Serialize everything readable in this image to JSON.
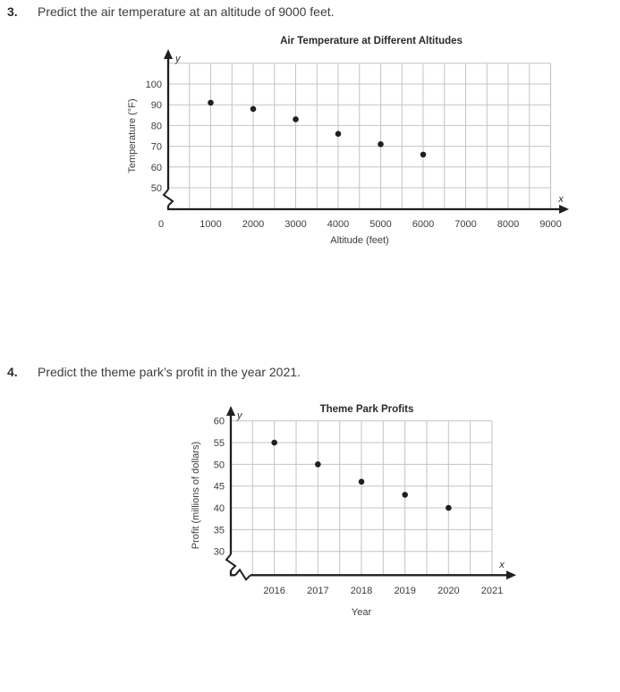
{
  "page": {
    "background": "#ffffff",
    "text_color": "#3d3d3d",
    "axis_color": "#231f20",
    "grid_color": "#c1c4c7"
  },
  "questions": [
    {
      "number": "3.",
      "text": "Predict the air temperature at an altitude of 9000 feet."
    },
    {
      "number": "4.",
      "text": "Predict the theme park’s profit in the year 2021."
    }
  ],
  "chart_data": [
    {
      "type": "scatter",
      "title": "Air Temperature at Different Altitudes",
      "xlabel": "Altitude (feet)",
      "ylabel": "Temperature (°F)",
      "x_axis_letter": "x",
      "y_axis_letter": "y",
      "x": [
        1000,
        2000,
        3000,
        4000,
        5000,
        6000
      ],
      "y": [
        91,
        88,
        83,
        76,
        71,
        66
      ],
      "x_ticks": [
        0,
        1000,
        2000,
        3000,
        4000,
        5000,
        6000,
        7000,
        8000,
        9000
      ],
      "y_ticks": [
        50,
        60,
        70,
        80,
        90,
        100
      ],
      "xlim": [
        0,
        9000
      ],
      "ylim_shown": [
        50,
        110
      ],
      "grid": "on",
      "axis_break": "y-axis between 0 and 50",
      "point_color": "#231f20",
      "grid_color": "#c1c4c7"
    },
    {
      "type": "scatter",
      "title": "Theme Park Profits",
      "xlabel": "Year",
      "ylabel": "Profit (millions of dollars)",
      "x_axis_letter": "x",
      "y_axis_letter": "y",
      "x": [
        2016,
        2017,
        2018,
        2019,
        2020
      ],
      "y": [
        55,
        50,
        46,
        43,
        40
      ],
      "x_ticks": [
        2016,
        2017,
        2018,
        2019,
        2020,
        2021
      ],
      "y_ticks": [
        30,
        35,
        40,
        45,
        50,
        55,
        60
      ],
      "xlim": [
        2015,
        2021
      ],
      "ylim_shown": [
        30,
        60
      ],
      "grid": "on",
      "axis_break": "both axes near origin",
      "point_color": "#231f20",
      "grid_color": "#c1c4c7"
    }
  ]
}
